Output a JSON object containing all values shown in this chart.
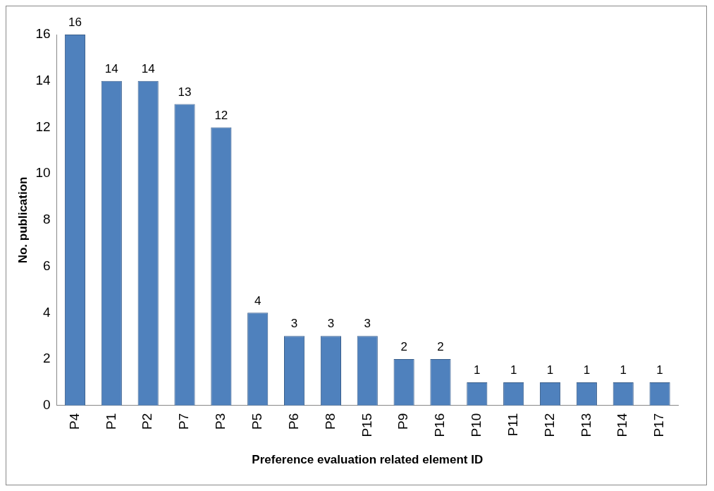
{
  "chart_data": {
    "type": "bar",
    "xlabel": "Preference evaluation related element ID",
    "ylabel": "No. publication",
    "categories": [
      "P4",
      "P1",
      "P2",
      "P7",
      "P3",
      "P5",
      "P6",
      "P8",
      "P15",
      "P9",
      "P16",
      "P10",
      "P11",
      "P12",
      "P13",
      "P14",
      "P17"
    ],
    "values": [
      16,
      14,
      14,
      13,
      12,
      4,
      3,
      3,
      3,
      2,
      2,
      1,
      1,
      1,
      1,
      1,
      1
    ],
    "color": "#4f81bd",
    "ylim": [
      0,
      16
    ],
    "yticks": [
      0,
      2,
      4,
      6,
      8,
      10,
      12,
      14,
      16
    ],
    "grid": false,
    "data_labels": true
  }
}
